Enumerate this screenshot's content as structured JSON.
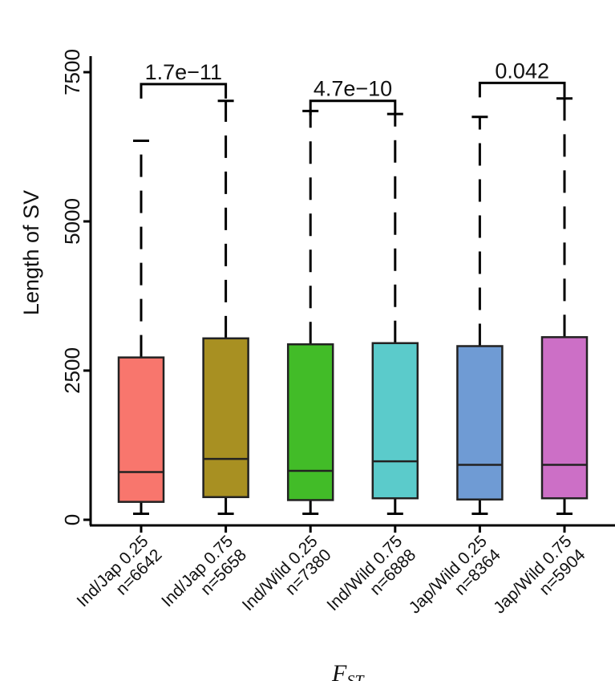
{
  "chart_data": {
    "type": "boxplot",
    "ylabel": "Length of SV",
    "xlabel_main": "F",
    "xlabel_sub": "ST",
    "ylim": [
      -50,
      7700
    ],
    "yticks": [
      0,
      2500,
      5000,
      7500
    ],
    "categories": [
      {
        "name": "Ind/Jap 0.25",
        "n_label": "n=6642",
        "color": "#F8766D",
        "whisker_low": 100,
        "q1": 300,
        "median": 800,
        "q3": 2720,
        "whisker_high": 6350
      },
      {
        "name": "Ind/Jap 0.75",
        "n_label": "n=5658",
        "color": "#A89022",
        "whisker_low": 100,
        "q1": 380,
        "median": 1020,
        "q3": 3040,
        "whisker_high": 7020
      },
      {
        "name": "Ind/Wild 0.25",
        "n_label": "n=7380",
        "color": "#42BC28",
        "whisker_low": 100,
        "q1": 330,
        "median": 820,
        "q3": 2940,
        "whisker_high": 6850
      },
      {
        "name": "Ind/Wild 0.75",
        "n_label": "n=6888",
        "color": "#5BCBCB",
        "whisker_low": 100,
        "q1": 360,
        "median": 980,
        "q3": 2960,
        "whisker_high": 6800
      },
      {
        "name": "Jap/Wild 0.25",
        "n_label": "n=8364",
        "color": "#6F9BD4",
        "whisker_low": 100,
        "q1": 340,
        "median": 920,
        "q3": 2910,
        "whisker_high": 6750
      },
      {
        "name": "Jap/Wild 0.75",
        "n_label": "n=5904",
        "color": "#CC6FC6",
        "whisker_low": 100,
        "q1": 360,
        "median": 920,
        "q3": 3060,
        "whisker_high": 7060
      }
    ],
    "comparisons": [
      {
        "from": 0,
        "to": 1,
        "label": "1.7e−11",
        "y": 7300
      },
      {
        "from": 2,
        "to": 3,
        "label": "4.7e−10",
        "y": 7020
      },
      {
        "from": 4,
        "to": 5,
        "label": "0.042",
        "y": 7320
      }
    ]
  }
}
